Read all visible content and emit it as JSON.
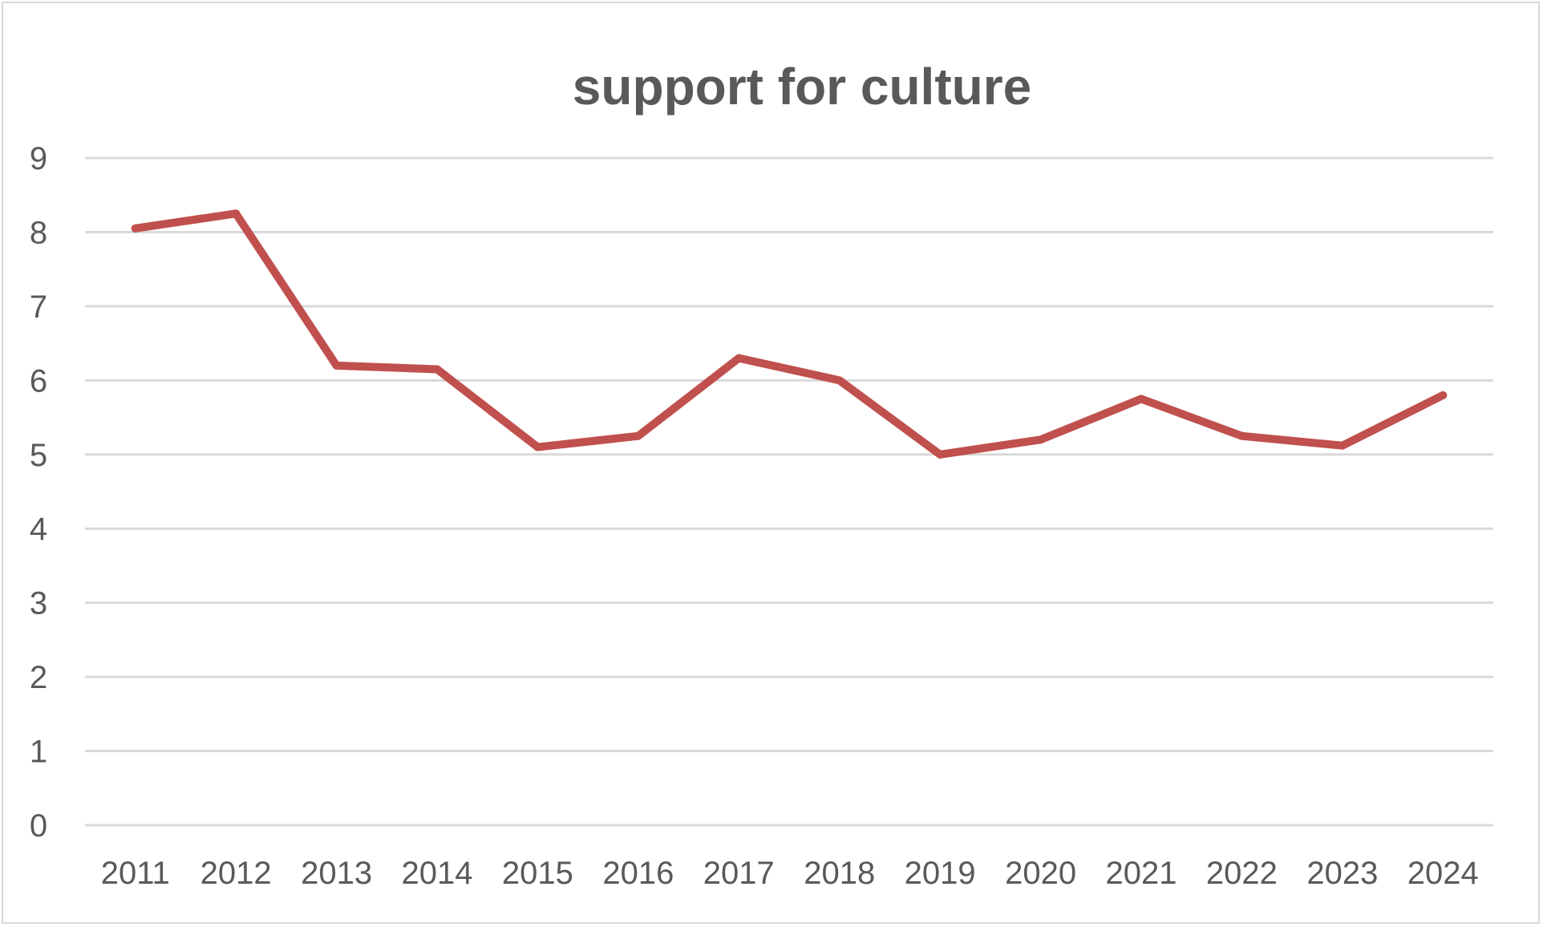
{
  "chart_data": {
    "type": "line",
    "title": "support for culture",
    "xlabel": "",
    "ylabel": "",
    "categories": [
      "2011",
      "2012",
      "2013",
      "2014",
      "2015",
      "2016",
      "2017",
      "2018",
      "2019",
      "2020",
      "2021",
      "2022",
      "2023",
      "2024"
    ],
    "series": [
      {
        "values": [
          8.05,
          8.25,
          6.2,
          6.15,
          5.1,
          5.25,
          6.3,
          6.0,
          5.0,
          5.2,
          5.75,
          5.25,
          5.12,
          5.8
        ],
        "color": "#c0504d"
      }
    ],
    "ylim": [
      0,
      9
    ],
    "yticks": [
      "0",
      "1",
      "2",
      "3",
      "4",
      "5",
      "6",
      "7",
      "8",
      "9"
    ],
    "grid": true,
    "legend": "none"
  }
}
